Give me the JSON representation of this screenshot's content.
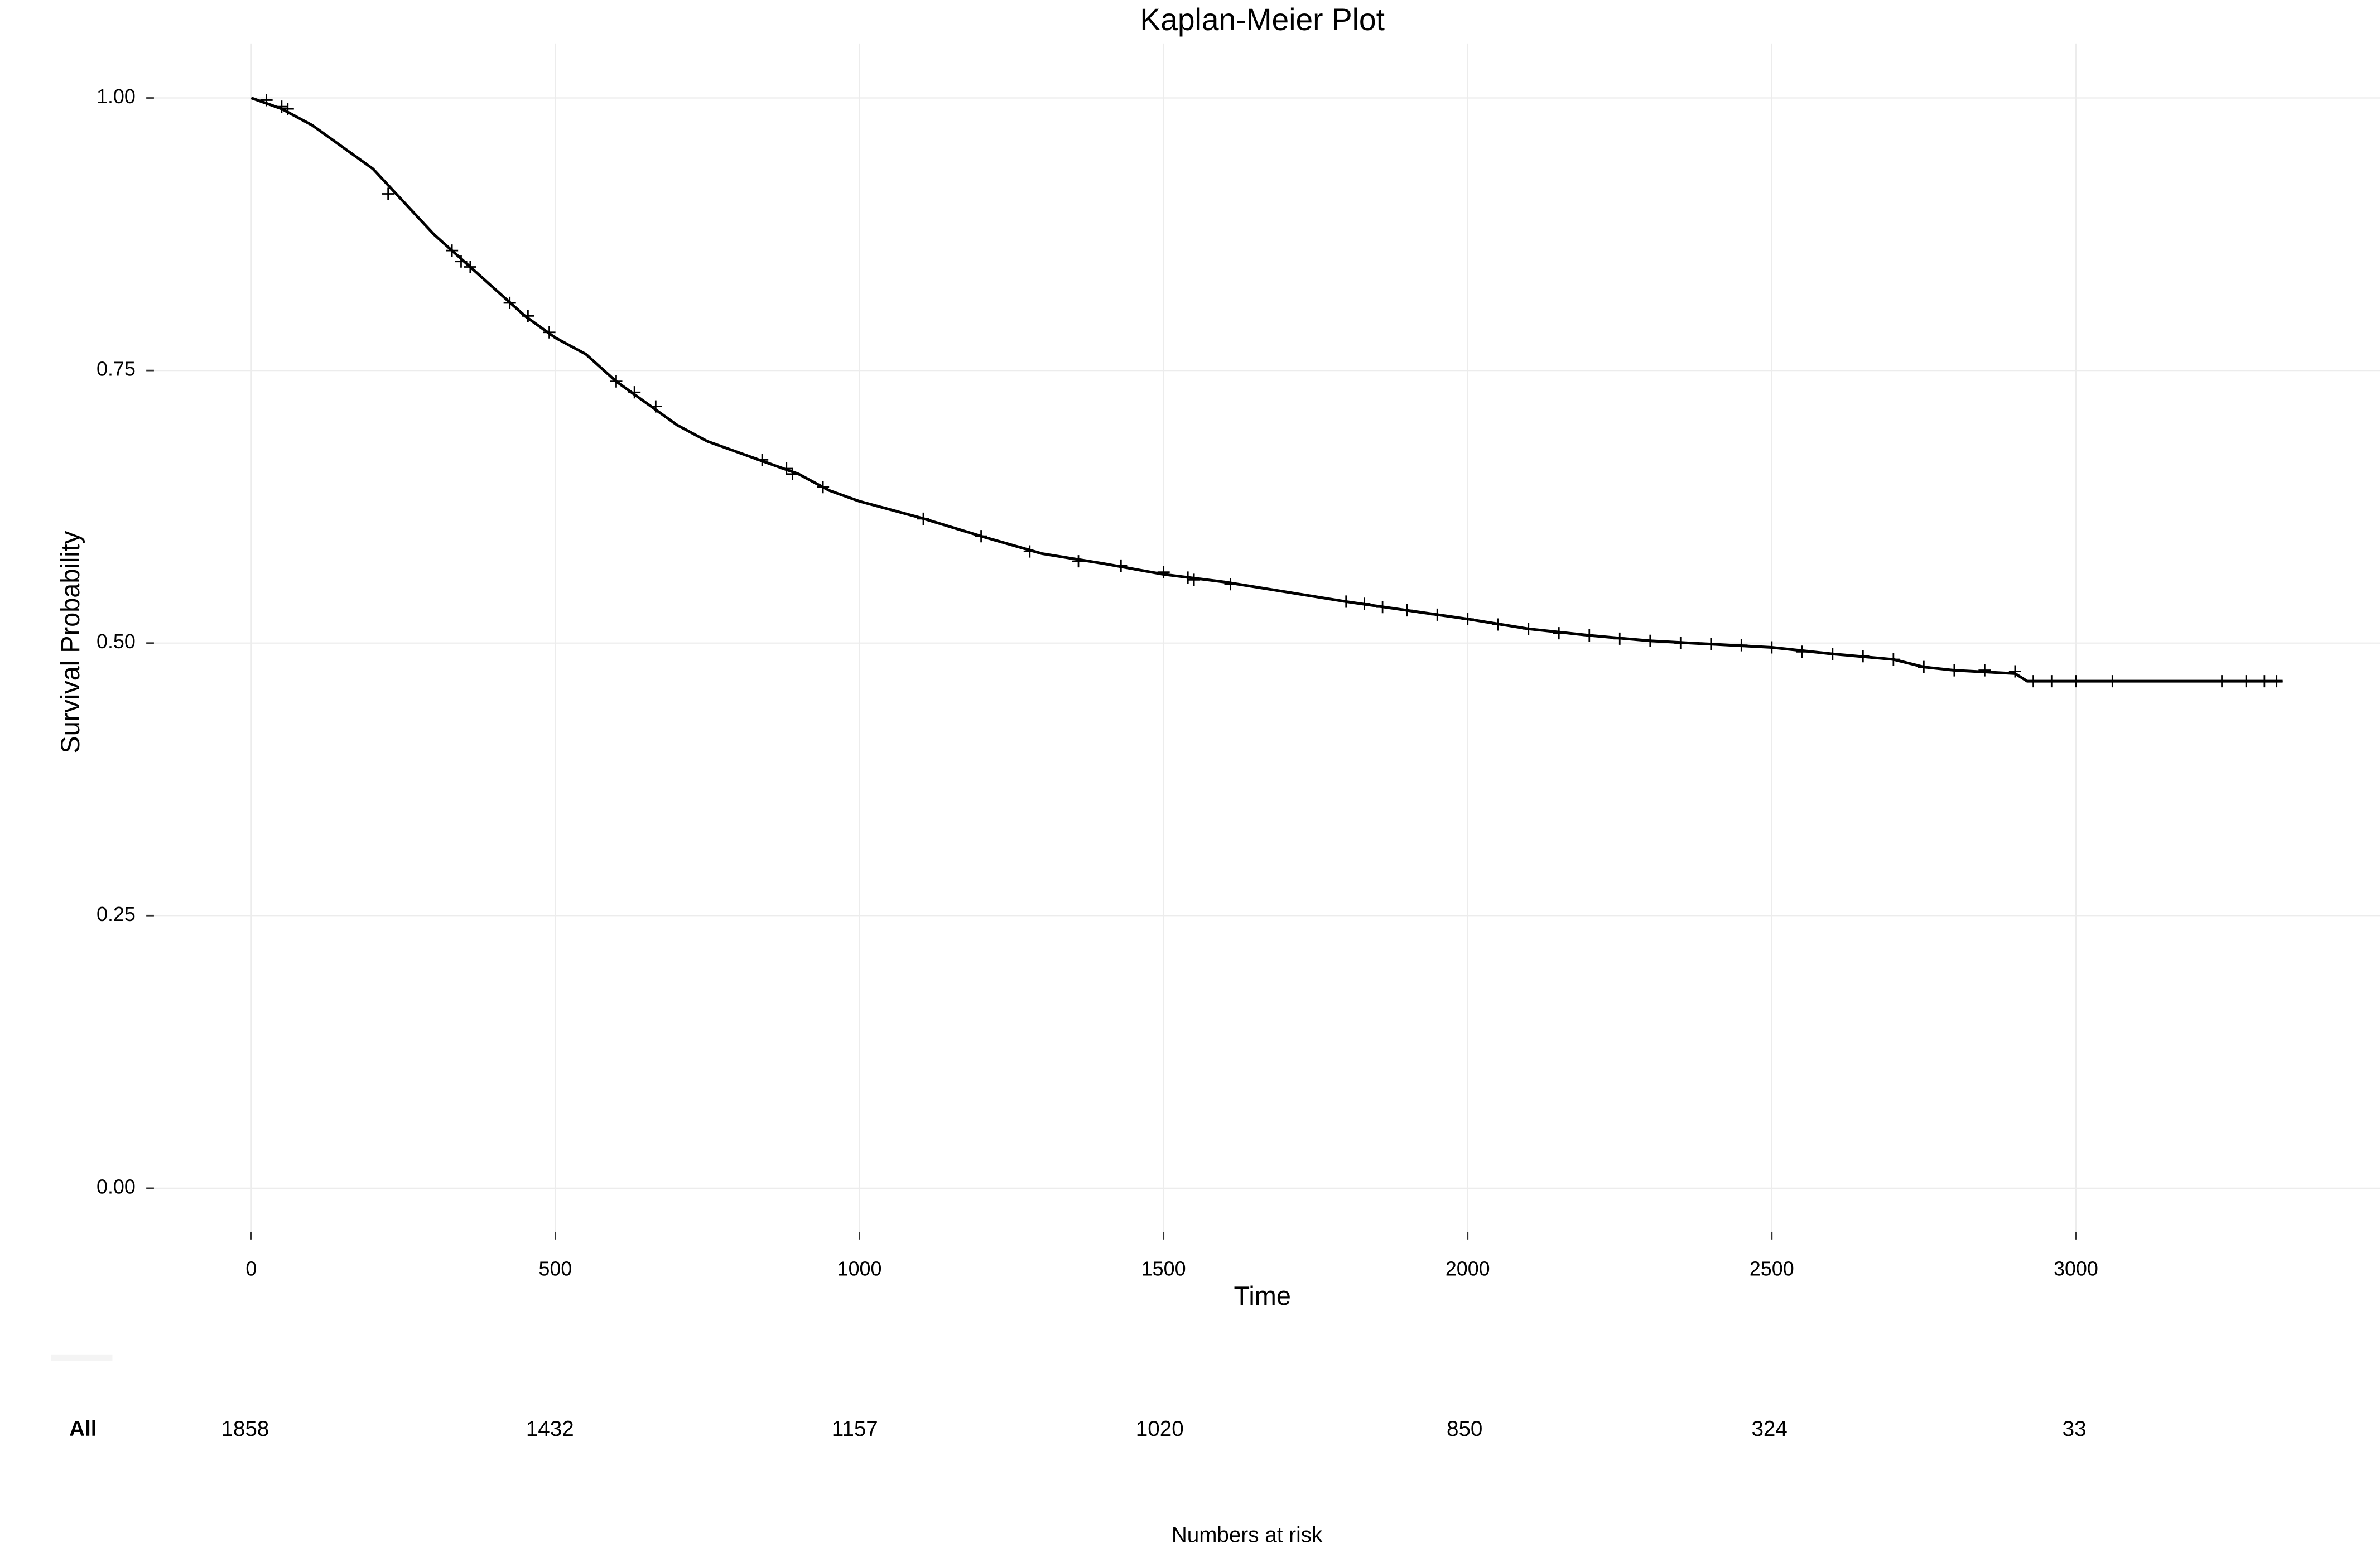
{
  "chart_data": {
    "type": "line",
    "title": "Kaplan-Meier Plot",
    "x_label": "Time",
    "y_label": "Survival Probability",
    "xlim": [
      -160,
      3500
    ],
    "ylim": [
      -0.04,
      1.05
    ],
    "xticks": [
      0,
      500,
      1000,
      1500,
      2000,
      2500,
      3000
    ],
    "yticks": [
      {
        "value": 0,
        "label": "0.00"
      },
      {
        "value": 0.25,
        "label": "0.25"
      },
      {
        "value": 0.5,
        "label": "0.50"
      },
      {
        "value": 0.75,
        "label": "0.75"
      },
      {
        "value": 1,
        "label": "1.00"
      }
    ],
    "grid": true,
    "series": [
      {
        "color": "#000000",
        "x": [
          0,
          50,
          100,
          150,
          200,
          250,
          300,
          350,
          400,
          450,
          500,
          550,
          600,
          650,
          700,
          750,
          800,
          850,
          900,
          950,
          1000,
          1100,
          1200,
          1300,
          1400,
          1500,
          1600,
          1700,
          1800,
          1900,
          2000,
          2100,
          2200,
          2300,
          2400,
          2500,
          2600,
          2700,
          2750,
          2800,
          2900,
          2920,
          3340
        ],
        "values": [
          1.0,
          0.99,
          0.975,
          0.955,
          0.935,
          0.905,
          0.875,
          0.85,
          0.825,
          0.8,
          0.78,
          0.765,
          0.74,
          0.72,
          0.7,
          0.685,
          0.675,
          0.665,
          0.655,
          0.64,
          0.63,
          0.615,
          0.598,
          0.582,
          0.573,
          0.563,
          0.556,
          0.547,
          0.538,
          0.53,
          0.522,
          0.513,
          0.507,
          0.502,
          0.499,
          0.496,
          0.49,
          0.485,
          0.478,
          0.475,
          0.472,
          0.465,
          0.465
        ],
        "censor_x": [
          25,
          50,
          60,
          225,
          330,
          345,
          360,
          425,
          455,
          490,
          600,
          630,
          665,
          840,
          880,
          890,
          940,
          1105,
          1200,
          1280,
          1360,
          1430,
          1500,
          1540,
          1550,
          1610,
          1800,
          1830,
          1860,
          1900,
          1950,
          2000,
          2050,
          2100,
          2150,
          2200,
          2250,
          2300,
          2350,
          2400,
          2450,
          2500,
          2550,
          2600,
          2650,
          2700,
          2750,
          2800,
          2850,
          2900,
          2930,
          2960,
          3000,
          3060,
          3240,
          3280,
          3310,
          3330
        ],
        "censor_values": [
          0.998,
          0.992,
          0.99,
          0.912,
          0.86,
          0.85,
          0.845,
          0.812,
          0.8,
          0.785,
          0.74,
          0.73,
          0.717,
          0.668,
          0.66,
          0.655,
          0.643,
          0.614,
          0.598,
          0.584,
          0.575,
          0.571,
          0.565,
          0.56,
          0.558,
          0.554,
          0.538,
          0.536,
          0.533,
          0.53,
          0.526,
          0.522,
          0.517,
          0.513,
          0.509,
          0.507,
          0.504,
          0.502,
          0.5,
          0.499,
          0.498,
          0.496,
          0.492,
          0.49,
          0.488,
          0.485,
          0.478,
          0.475,
          0.475,
          0.474,
          0.465,
          0.465,
          0.465,
          0.465,
          0.465,
          0.465,
          0.465,
          0.465
        ]
      }
    ],
    "risk_table": {
      "title": "Numbers at risk",
      "rows": [
        {
          "name": "All",
          "values": [
            1858,
            1432,
            1157,
            1020,
            850,
            324,
            33
          ]
        }
      ]
    }
  }
}
